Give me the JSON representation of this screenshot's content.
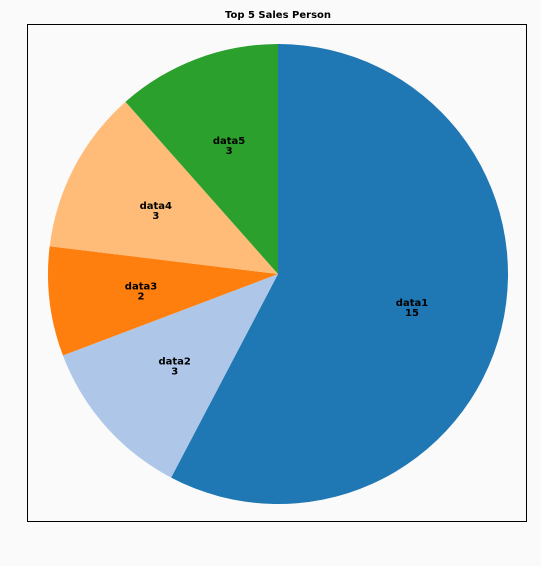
{
  "chart_data": {
    "type": "pie",
    "title": "Top 5 Sales Person",
    "start_angle_deg": 90,
    "direction": "clockwise",
    "slices": [
      {
        "label": "data1",
        "value": 15,
        "color": "#1f77b4"
      },
      {
        "label": "data2",
        "value": 3,
        "color": "#aec7e8"
      },
      {
        "label": "data3",
        "value": 2,
        "color": "#ff7f0e"
      },
      {
        "label": "data4",
        "value": 3,
        "color": "#ffbb78"
      },
      {
        "label": "data5",
        "value": 3,
        "color": "#2ca02c"
      }
    ],
    "legend": "none"
  }
}
